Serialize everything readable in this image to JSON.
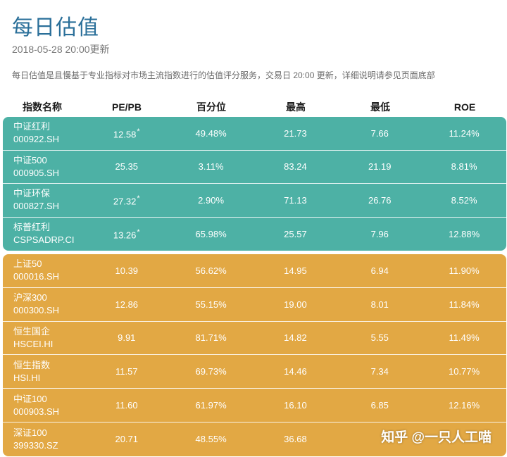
{
  "page": {
    "title": "每日估值",
    "updated": "2018-05-28 20:00更新",
    "description": "每日估值是且慢基于专业指标对市场主流指数进行的估值评分服务，交易日 20:00 更新，详细说明请参见页面底部"
  },
  "table": {
    "headers": [
      "指数名称",
      "PE/PB",
      "百分位",
      "最高",
      "最低",
      "ROE"
    ],
    "groups": [
      {
        "color": "#4db1a5",
        "rows": [
          {
            "name": "中证红利",
            "code": "000922.SH",
            "pepb": "12.58",
            "star": "*",
            "pct": "49.48%",
            "high": "21.73",
            "low": "7.66",
            "roe": "11.24%"
          },
          {
            "name": "中证500",
            "code": "000905.SH",
            "pepb": "25.35",
            "star": "",
            "pct": "3.11%",
            "high": "83.24",
            "low": "21.19",
            "roe": "8.81%"
          },
          {
            "name": "中证环保",
            "code": "000827.SH",
            "pepb": "27.32",
            "star": "*",
            "pct": "2.90%",
            "high": "71.13",
            "low": "26.76",
            "roe": "8.52%"
          },
          {
            "name": "标普红利",
            "code": "CSPSADRP.CI",
            "pepb": "13.26",
            "star": "*",
            "pct": "65.98%",
            "high": "25.57",
            "low": "7.96",
            "roe": "12.88%"
          }
        ]
      },
      {
        "color": "#e2a844",
        "rows": [
          {
            "name": "上证50",
            "code": "000016.SH",
            "pepb": "10.39",
            "star": "",
            "pct": "56.62%",
            "high": "14.95",
            "low": "6.94",
            "roe": "11.90%"
          },
          {
            "name": "沪深300",
            "code": "000300.SH",
            "pepb": "12.86",
            "star": "",
            "pct": "55.15%",
            "high": "19.00",
            "low": "8.01",
            "roe": "11.84%"
          },
          {
            "name": "恒生国企",
            "code": "HSCEI.HI",
            "pepb": "9.91",
            "star": "",
            "pct": "81.71%",
            "high": "14.82",
            "low": "5.55",
            "roe": "11.49%"
          },
          {
            "name": "恒生指数",
            "code": "HSI.HI",
            "pepb": "11.57",
            "star": "",
            "pct": "69.73%",
            "high": "14.46",
            "low": "7.34",
            "roe": "10.77%"
          },
          {
            "name": "中证100",
            "code": "000903.SH",
            "pepb": "11.60",
            "star": "",
            "pct": "61.97%",
            "high": "16.10",
            "low": "6.85",
            "roe": "12.16%"
          },
          {
            "name": "深证100",
            "code": "399330.SZ",
            "pepb": "20.71",
            "star": "",
            "pct": "48.55%",
            "high": "36.68",
            "low": "",
            "roe": ""
          }
        ]
      }
    ]
  },
  "watermark": "知乎 @一只人工喵"
}
